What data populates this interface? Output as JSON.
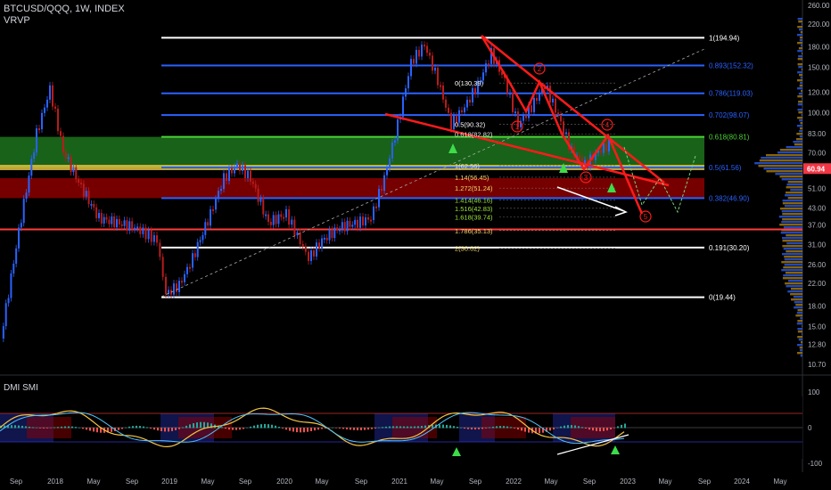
{
  "header": {
    "symbol_line": "BTCUSD/QQQ, 1W, INDEX",
    "indicator": "VRVP"
  },
  "subpane": {
    "title": "DMI SMI"
  },
  "colors": {
    "background": "#000000",
    "fib_white": "#ffffff",
    "fib_blue": "#2962ff",
    "green_zone": "#1f7a1f",
    "red_zone": "#8b0000",
    "yellow_line": "#e0c341",
    "trend_red": "#ff1a1a",
    "price_badge": "#f23645"
  },
  "chart_data": {
    "type": "candlestick",
    "symbol": "BTCUSD/QQQ",
    "interval": "1W",
    "ylabel": "",
    "y_scale": "log",
    "y_ticks": [
      "260.00",
      "220.00",
      "180.00",
      "150.00",
      "120.00",
      "100.00",
      "83.00",
      "70.00",
      "60.94",
      "51.00",
      "43.00",
      "37.00",
      "31.00",
      "26.00",
      "22.00",
      "18.00",
      "15.00",
      "12.80",
      "10.70"
    ],
    "x_ticks": [
      "Sep",
      "2018",
      "May",
      "Sep",
      "2019",
      "May",
      "Sep",
      "2020",
      "May",
      "Sep",
      "2021",
      "May",
      "Sep",
      "2022",
      "May",
      "Sep",
      "2023",
      "May",
      "Sep",
      "2024",
      "May"
    ],
    "last_price": "60.94",
    "fib_right": [
      {
        "label": "1(194.94)",
        "value": 194.94
      },
      {
        "label": "0.893(152.32)",
        "value": 152.32
      },
      {
        "label": "0.786(119.03)",
        "value": 119.03
      },
      {
        "label": "0.702(98.07)",
        "value": 98.07
      },
      {
        "label": "0.618(80.81)",
        "value": 80.81
      },
      {
        "label": "0.5(61.56)",
        "value": 61.56
      },
      {
        "label": "0.382(46.90)",
        "value": 46.9
      },
      {
        "label": "0.191(30.20)",
        "value": 30.2
      },
      {
        "label": "0(19.44)",
        "value": 19.44
      }
    ],
    "fib_center": [
      {
        "label": "0(130.39)",
        "value": 130.39
      },
      {
        "label": "0.5(90.32)",
        "value": 90.32
      },
      {
        "label": "0.618(82.82)",
        "value": 82.82
      },
      {
        "label": "1(62.56)",
        "value": 62.56
      },
      {
        "label": "1.14(56.45)",
        "value": 56.45
      },
      {
        "label": "1.272(51.24)",
        "value": 51.24
      },
      {
        "label": "1.414(46.16)",
        "value": 46.16
      },
      {
        "label": "1.516(42.83)",
        "value": 42.83
      },
      {
        "label": "1.618(39.74)",
        "value": 39.74
      },
      {
        "label": "1.786(35.13)",
        "value": 35.13
      },
      {
        "label": "2(30.02)",
        "value": 30.02
      }
    ],
    "wave_labels": [
      "1",
      "2",
      "3",
      "4",
      "5"
    ],
    "dmi_ticks": [
      "100",
      "0",
      "-100"
    ]
  }
}
